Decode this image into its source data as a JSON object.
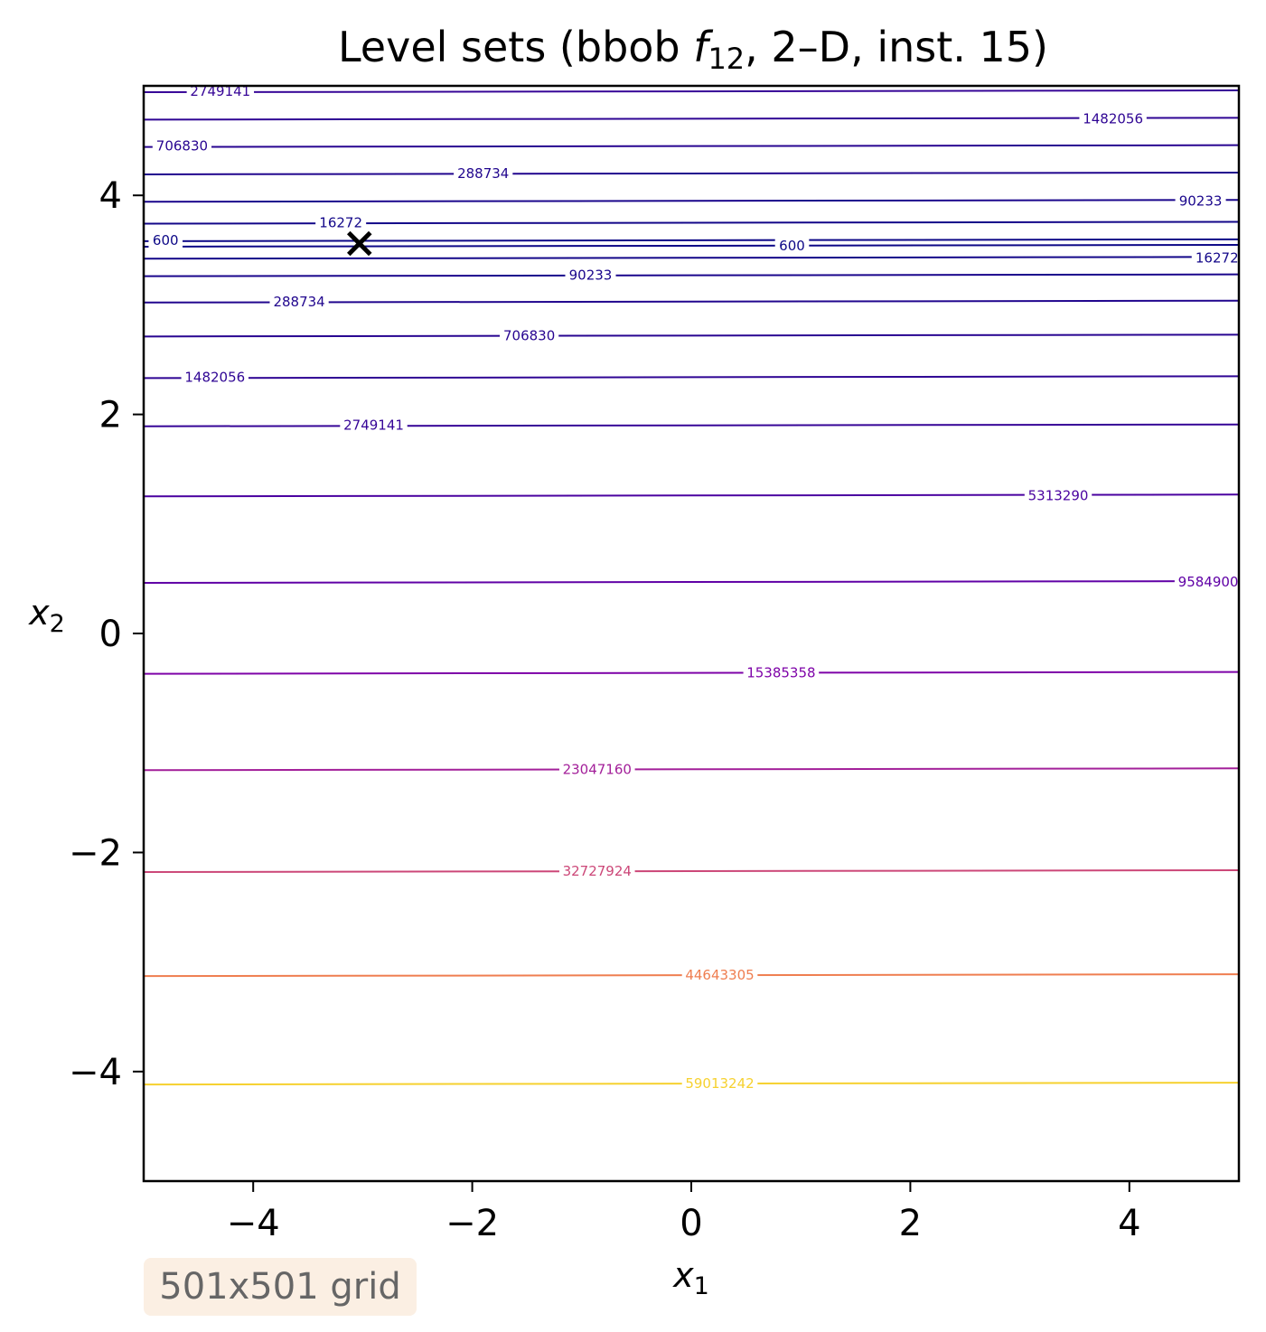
{
  "chart_data": {
    "type": "contour",
    "title_prefix": "Level sets (bbob ",
    "title_func": "f",
    "title_sub": "12",
    "title_suffix": ", 2–D, inst. 15)",
    "xlabel": "x",
    "xlabel_sub": "1",
    "ylabel": "x",
    "ylabel_sub": "2",
    "xlim": [
      -5,
      5
    ],
    "ylim": [
      -5,
      5
    ],
    "xticks": [
      -4,
      -2,
      0,
      2,
      4
    ],
    "yticks": [
      -4,
      -2,
      0,
      2,
      4
    ],
    "xtick_labels": [
      "−4",
      "−2",
      "0",
      "2",
      "4"
    ],
    "ytick_labels": [
      "−4",
      "−2",
      "0",
      "2",
      "4"
    ],
    "colormap": "plasma",
    "levels": [
      {
        "value": 600,
        "label": "600",
        "x2_values": [
          3.59,
          3.54
        ],
        "color": "#0d0887"
      },
      {
        "value": 16272,
        "label": "16272",
        "x2_values": [
          3.75,
          3.43
        ],
        "color": "#130789"
      },
      {
        "value": 90233,
        "label": "90233",
        "x2_values": [
          3.95,
          3.27
        ],
        "color": "#1a068c"
      },
      {
        "value": 288734,
        "label": "288734",
        "x2_values": [
          4.2,
          3.03
        ],
        "color": "#21068e"
      },
      {
        "value": 706830,
        "label": "706830",
        "x2_values": [
          4.45,
          2.72
        ],
        "color": "#280591"
      },
      {
        "value": 1482056,
        "label": "1482056",
        "x2_values": [
          4.7,
          2.34
        ],
        "color": "#2f0594"
      },
      {
        "value": 2749141,
        "label": "2749141",
        "x2_values": [
          4.95,
          1.9
        ],
        "color": "#360597"
      },
      {
        "value": 5313290,
        "label": "5313290",
        "x2_values": [
          1.26
        ],
        "color": "#4a02a0"
      },
      {
        "value": 9584900,
        "label": "9584900",
        "x2_values": [
          0.47
        ],
        "color": "#6001a6"
      },
      {
        "value": 15385358,
        "label": "15385358",
        "x2_values": [
          -0.36
        ],
        "color": "#7e03a8"
      },
      {
        "value": 23047160,
        "label": "23047160",
        "x2_values": [
          -1.24
        ],
        "color": "#a3209a"
      },
      {
        "value": 32727924,
        "label": "32727924",
        "x2_values": [
          -2.17
        ],
        "color": "#cc4778"
      },
      {
        "value": 44643305,
        "label": "44643305",
        "x2_values": [
          -3.12
        ],
        "color": "#ef7e50"
      },
      {
        "value": 59013242,
        "label": "59013242",
        "x2_values": [
          -4.11
        ],
        "color": "#f6d12f"
      }
    ],
    "level_labels_shown": [
      {
        "level": "2749141",
        "x1": -4.3,
        "x2": 4.95
      },
      {
        "level": "1482056",
        "x1": 3.85,
        "x2": 4.7
      },
      {
        "level": "706830",
        "x1": -4.65,
        "x2": 4.45
      },
      {
        "level": "288734",
        "x1": -1.9,
        "x2": 4.2
      },
      {
        "level": "90233",
        "x1": 4.65,
        "x2": 3.95
      },
      {
        "level": "16272",
        "x1": -3.2,
        "x2": 3.75
      },
      {
        "level": "600",
        "x1": -4.8,
        "x2": 3.59
      },
      {
        "level": "600",
        "x1": 0.92,
        "x2": 3.54
      },
      {
        "level": "16272",
        "x1": 4.8,
        "x2": 3.43
      },
      {
        "level": "90233",
        "x1": -0.92,
        "x2": 3.27
      },
      {
        "level": "288734",
        "x1": -3.58,
        "x2": 3.03
      },
      {
        "level": "706830",
        "x1": -1.48,
        "x2": 2.72
      },
      {
        "level": "1482056",
        "x1": -4.35,
        "x2": 2.34
      },
      {
        "level": "2749141",
        "x1": -2.9,
        "x2": 1.9
      },
      {
        "level": "5313290",
        "x1": 3.35,
        "x2": 1.26
      },
      {
        "level": "9584900",
        "x1": 4.72,
        "x2": 0.47
      },
      {
        "level": "15385358",
        "x1": 0.82,
        "x2": -0.36
      },
      {
        "level": "23047160",
        "x1": -0.86,
        "x2": -1.24
      },
      {
        "level": "32727924",
        "x1": -0.86,
        "x2": -2.17
      },
      {
        "level": "44643305",
        "x1": 0.26,
        "x2": -3.12
      },
      {
        "level": "59013242",
        "x1": 0.26,
        "x2": -4.11
      }
    ],
    "optimum_marker": {
      "x1": -3.03,
      "x2": 3.56,
      "symbol": "×"
    }
  },
  "annotation": {
    "text": "501x501 grid"
  }
}
